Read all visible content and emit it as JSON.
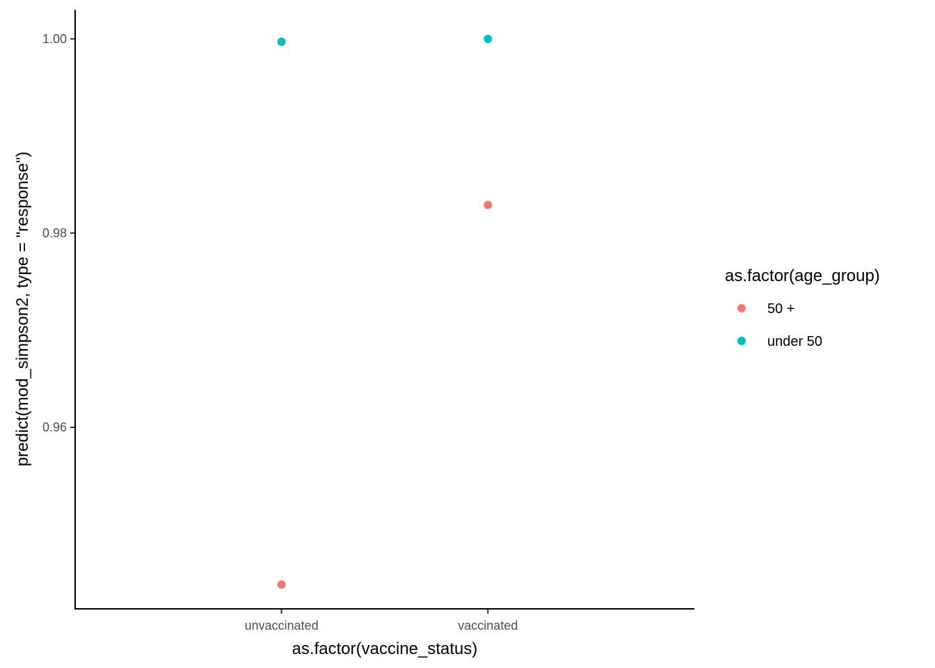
{
  "chart_data": {
    "type": "scatter",
    "title": "",
    "xlabel": "as.factor(vaccine_status)",
    "ylabel": "predict(mod_simpson2, type = \"response\")",
    "categories": [
      "unvaccinated",
      "vaccinated"
    ],
    "ylim": [
      0.9413,
      1.003
    ],
    "yticks": [
      0.96,
      0.98,
      1.0
    ],
    "ytick_labels": [
      "0.96",
      "0.98",
      "1.00"
    ],
    "grid": false,
    "legend": {
      "title": "as.factor(age_group)",
      "placement": "right"
    },
    "series": [
      {
        "name": "50 +",
        "color": "#F8766D",
        "x": [
          "unvaccinated",
          "vaccinated"
        ],
        "y": [
          0.9438,
          0.9829
        ]
      },
      {
        "name": "under 50",
        "color": "#00BFC4",
        "x": [
          "unvaccinated",
          "vaccinated"
        ],
        "y": [
          0.9997,
          1.0
        ]
      }
    ]
  }
}
